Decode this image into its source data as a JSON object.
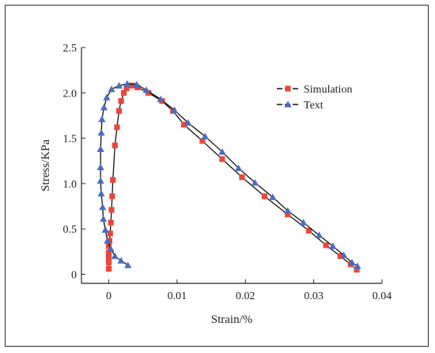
{
  "chart_data": {
    "type": "line",
    "xlabel": "Strain/%",
    "ylabel": "Stress/KPa",
    "xlim": [
      -0.004,
      0.04
    ],
    "ylim": [
      -0.1,
      2.5
    ],
    "x_ticks": [
      0,
      0.01,
      0.02,
      0.03,
      0.04
    ],
    "x_tick_labels": [
      "0",
      "0.01",
      "0.02",
      "0.03",
      "0.04"
    ],
    "y_ticks": [
      0,
      0.5,
      1.0,
      1.5,
      2.0,
      2.5
    ],
    "y_tick_labels": [
      "0",
      "0.5",
      "1.0",
      "1.5",
      "2.0",
      "2.5"
    ],
    "legend_position": "top-right",
    "series": [
      {
        "name": "Simulation",
        "marker": "square",
        "color": "#e8473c",
        "line_color": "#111111",
        "points": [
          [
            0.0,
            0.06
          ],
          [
            0.0,
            0.13
          ],
          [
            0.0,
            0.19
          ],
          [
            0.0,
            0.24
          ],
          [
            0.0,
            0.31
          ],
          [
            0.0001,
            0.37
          ],
          [
            0.0002,
            0.45
          ],
          [
            0.0003,
            0.57
          ],
          [
            0.0004,
            0.71
          ],
          [
            0.0005,
            0.86
          ],
          [
            0.0006,
            1.04
          ],
          [
            0.0009,
            1.42
          ],
          [
            0.0012,
            1.62
          ],
          [
            0.0015,
            1.8
          ],
          [
            0.0018,
            1.91
          ],
          [
            0.0022,
            2.0
          ],
          [
            0.0026,
            2.05
          ],
          [
            0.003,
            2.08
          ],
          [
            0.0035,
            2.08
          ],
          [
            0.0042,
            2.06
          ],
          [
            0.0058,
            2.0
          ],
          [
            0.0078,
            1.91
          ],
          [
            0.0094,
            1.8
          ],
          [
            0.011,
            1.65
          ],
          [
            0.0137,
            1.47
          ],
          [
            0.0166,
            1.27
          ],
          [
            0.0195,
            1.07
          ],
          [
            0.0228,
            0.86
          ],
          [
            0.0262,
            0.66
          ],
          [
            0.0293,
            0.48
          ],
          [
            0.0318,
            0.32
          ],
          [
            0.0339,
            0.2
          ],
          [
            0.0354,
            0.11
          ],
          [
            0.0363,
            0.05
          ]
        ]
      },
      {
        "name": "Text",
        "marker": "triangle",
        "color": "#4a6cc0",
        "line_color": "#111111",
        "points": [
          [
            0.0028,
            0.1
          ],
          [
            0.0018,
            0.15
          ],
          [
            0.0009,
            0.2
          ],
          [
            0.0003,
            0.28
          ],
          [
            -0.0002,
            0.37
          ],
          [
            -0.0005,
            0.49
          ],
          [
            -0.0008,
            0.61
          ],
          [
            -0.0009,
            0.74
          ],
          [
            -0.0011,
            0.89
          ],
          [
            -0.0012,
            1.03
          ],
          [
            -0.0012,
            1.18
          ],
          [
            -0.0012,
            1.38
          ],
          [
            -0.0011,
            1.56
          ],
          [
            -0.001,
            1.71
          ],
          [
            -0.0007,
            1.84
          ],
          [
            -0.0003,
            1.95
          ],
          [
            0.0004,
            2.04
          ],
          [
            0.0015,
            2.08
          ],
          [
            0.0027,
            2.1
          ],
          [
            0.0041,
            2.09
          ],
          [
            0.0055,
            2.03
          ],
          [
            0.0076,
            1.93
          ],
          [
            0.0096,
            1.81
          ],
          [
            0.0116,
            1.67
          ],
          [
            0.0141,
            1.52
          ],
          [
            0.0166,
            1.35
          ],
          [
            0.019,
            1.17
          ],
          [
            0.0214,
            1.01
          ],
          [
            0.024,
            0.85
          ],
          [
            0.0262,
            0.7
          ],
          [
            0.0285,
            0.57
          ],
          [
            0.0308,
            0.43
          ],
          [
            0.0328,
            0.31
          ],
          [
            0.0344,
            0.21
          ],
          [
            0.0356,
            0.13
          ],
          [
            0.0364,
            0.09
          ]
        ]
      }
    ]
  }
}
